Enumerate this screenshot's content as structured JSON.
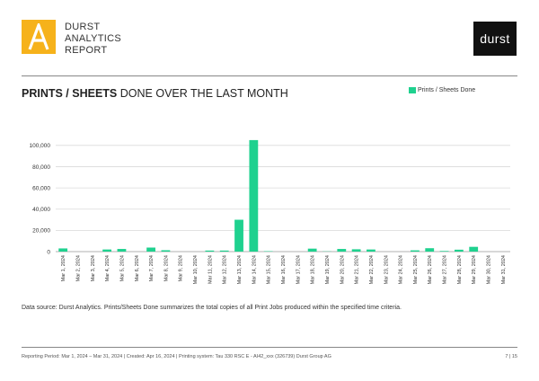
{
  "header": {
    "brand_lines": [
      "DURST",
      "ANALYTICS",
      "REPORT"
    ],
    "logo_letter": "A",
    "company_logo_text": "durst"
  },
  "report": {
    "title_bold": "PRINTS / SHEETS",
    "title_rest": "DONE OVER THE LAST MONTH",
    "note": "Data source: Durst Analytics. Prints/Sheets Done summarizes the total copies of all Print Jobs produced within the specified time criteria."
  },
  "footer": {
    "text": "Reporting Period: Mar 1, 2024 – Mar 31, 2024   |   Created: Apr 16, 2024   |   Printing system: Tau 330 RSC E - AI42_xxx (326739) Durst Group AG",
    "page": "7 | 15"
  },
  "colors": {
    "bar": "#1fd18f",
    "accent": "#f6b21b",
    "grid": "#d9d9d9"
  },
  "chart_data": {
    "type": "bar",
    "title": "PRINTS / SHEETS DONE OVER THE LAST MONTH",
    "legend": "Prints / Sheets Done",
    "legend_position": "top-right",
    "xlabel": "",
    "ylabel": "",
    "ylim": [
      0,
      110000
    ],
    "yticks": [
      0,
      20000,
      40000,
      60000,
      80000,
      100000
    ],
    "ytick_labels": [
      "0",
      "20,000",
      "40,000",
      "60,000",
      "80,000",
      "100,000"
    ],
    "grid": true,
    "categories": [
      "Mar 1, 2024",
      "Mar 2, 2024",
      "Mar 3, 2024",
      "Mar 4, 2024",
      "Mar 5, 2024",
      "Mar 6, 2024",
      "Mar 7, 2024",
      "Mar 8, 2024",
      "Mar 9, 2024",
      "Mar 10, 2024",
      "Mar 11, 2024",
      "Mar 12, 2024",
      "Mar 13, 2024",
      "Mar 14, 2024",
      "Mar 15, 2024",
      "Mar 16, 2024",
      "Mar 17, 2024",
      "Mar 18, 2024",
      "Mar 19, 2024",
      "Mar 20, 2024",
      "Mar 21, 2024",
      "Mar 22, 2024",
      "Mar 23, 2024",
      "Mar 24, 2024",
      "Mar 25, 2024",
      "Mar 26, 2024",
      "Mar 27, 2024",
      "Mar 28, 2024",
      "Mar 29, 2024",
      "Mar 30, 2024",
      "Mar 31, 2024"
    ],
    "series": [
      {
        "name": "Prints / Sheets Done",
        "values": [
          3000,
          0,
          0,
          2000,
          2500,
          0,
          3800,
          1300,
          0,
          0,
          1000,
          1000,
          30000,
          105000,
          400,
          0,
          0,
          2800,
          200,
          2500,
          2200,
          2000,
          0,
          0,
          1200,
          3200,
          600,
          1800,
          4500,
          0,
          0
        ]
      }
    ]
  }
}
